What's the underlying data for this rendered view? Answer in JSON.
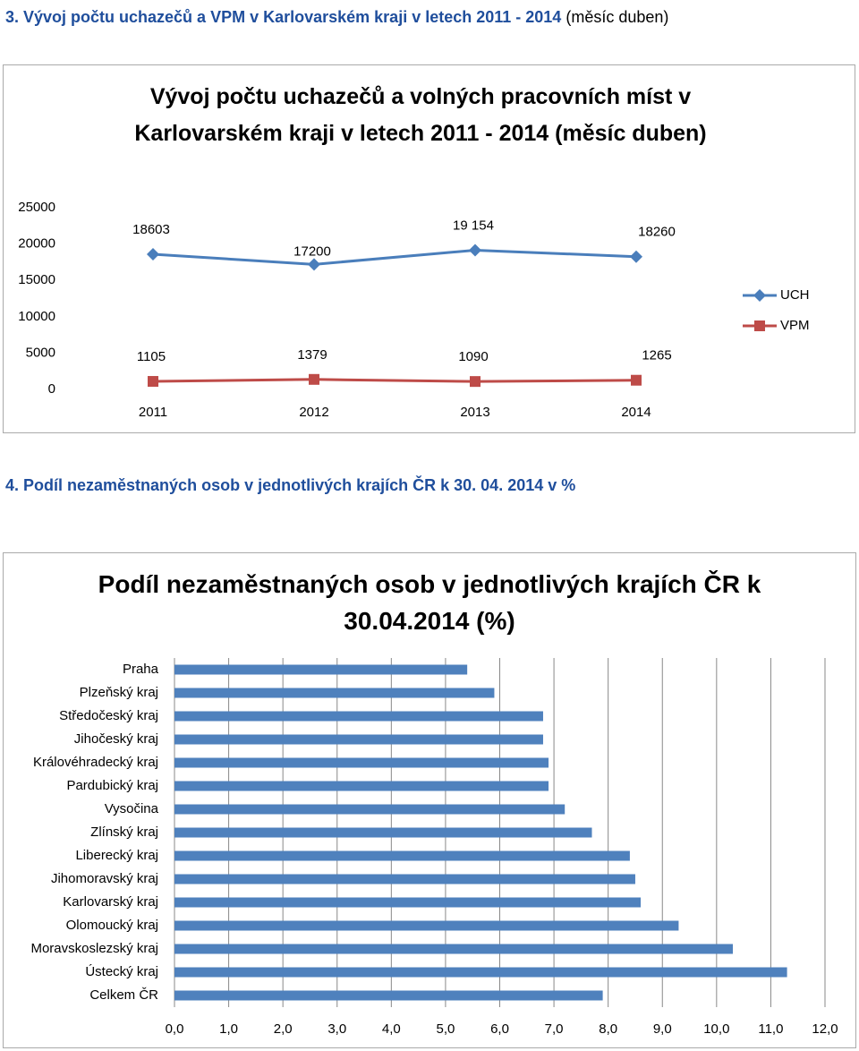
{
  "heading_3": {
    "title": "3. Vývoj počtu uchazečů a VPM v Karlovarském kraji v letech 2011 - 2014",
    "note": "(měsíc duben)"
  },
  "heading_4": "4. Podíl nezaměstnaných osob v jednotlivých krajích ČR k 30. 04. 2014 v %",
  "chart_data": [
    {
      "type": "line",
      "title": "Vývoj počtu uchazečů a volných pracovních míst v Karlovarském kraji v letech 2011 - 2014 (měsíc duben)",
      "categories": [
        "2011",
        "2012",
        "2013",
        "2014"
      ],
      "series": [
        {
          "name": "UCH",
          "color": "#4a7ebb",
          "marker": "diamond",
          "values": [
            18603,
            17200,
            19154,
            18260
          ],
          "value_labels": [
            "18603",
            "17200",
            "19 154",
            "18260"
          ]
        },
        {
          "name": "VPM",
          "color": "#be4b48",
          "marker": "square",
          "values": [
            1105,
            1379,
            1090,
            1265
          ]
        }
      ],
      "ylim": [
        0,
        25000
      ],
      "yticks": [
        0,
        5000,
        10000,
        15000,
        20000,
        25000
      ],
      "legend": "right",
      "grid": false
    },
    {
      "type": "hbar",
      "title": "Podíl nezaměstnaných osob v jednotlivých krajích ČR k 30.04.2014 (%)",
      "categories": [
        "Praha",
        "Plzeňský kraj",
        "Středočeský kraj",
        "Jihočeský kraj",
        "Královéhradecký kraj",
        "Pardubický kraj",
        "Vysočina",
        "Zlínský kraj",
        "Liberecký kraj",
        "Jihomoravský kraj",
        "Karlovarský kraj",
        "Olomoucký kraj",
        "Moravskoslezský kraj",
        "Ústecký kraj",
        "Celkem ČR"
      ],
      "values": [
        5.4,
        5.9,
        6.8,
        6.8,
        6.9,
        6.9,
        7.2,
        7.7,
        8.4,
        8.5,
        8.6,
        9.3,
        10.3,
        11.3,
        7.9
      ],
      "color": "#4f81bd",
      "xlim": [
        0,
        12
      ],
      "xticks": [
        {
          "value": 0,
          "label": "0,0"
        },
        {
          "value": 1,
          "label": "1,0"
        },
        {
          "value": 2,
          "label": "2,0"
        },
        {
          "value": 3,
          "label": "3,0"
        },
        {
          "value": 4,
          "label": "4,0"
        },
        {
          "value": 5,
          "label": "5,0"
        },
        {
          "value": 6,
          "label": "6,0"
        },
        {
          "value": 7,
          "label": "7,0"
        },
        {
          "value": 8,
          "label": "8,0"
        },
        {
          "value": 9,
          "label": "9,0"
        },
        {
          "value": 10,
          "label": "10,0"
        },
        {
          "value": 11,
          "label": "11,0"
        },
        {
          "value": 12,
          "label": "12,0"
        }
      ],
      "grid": true
    }
  ]
}
